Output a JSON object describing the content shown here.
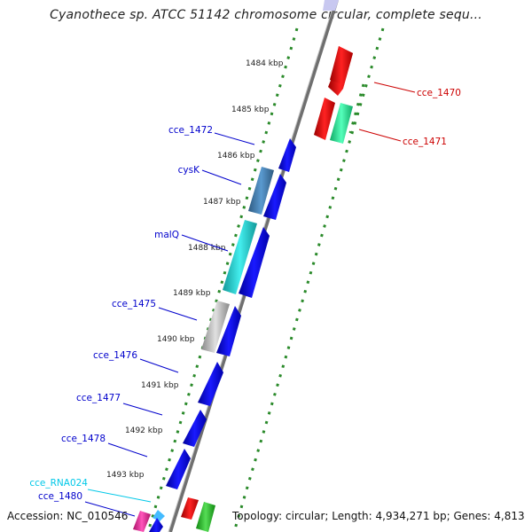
{
  "title": "Cyanothece sp. ATCC 51142 chromosome circular, complete sequ...",
  "footer": {
    "accession": "Accession: NC_010546",
    "summary": "Topology: circular; Length: 4,934,271 bp; Genes: 4,813"
  },
  "tick_labels": [
    "1484 kbp",
    "1485 kbp",
    "1486 kbp",
    "1487 kbp",
    "1488 kbp",
    "1489 kbp",
    "1490 kbp",
    "1491 kbp",
    "1492 kbp",
    "1493 kbp"
  ],
  "genes": [
    {
      "name": "cce_1470",
      "color": "#cc0000",
      "strand": "forward",
      "feature": "red-gene"
    },
    {
      "name": "cce_1471",
      "color": "#cc0000",
      "strand": "forward",
      "feature": "red-gene"
    },
    {
      "name": "cce_1472",
      "color": "#0000cc",
      "strand": "reverse",
      "feature": "blue-gene"
    },
    {
      "name": "cysK",
      "color": "#0000cc",
      "strand": "reverse",
      "feature": "steelblue-gene"
    },
    {
      "name": "malQ",
      "color": "#0000cc",
      "strand": "reverse",
      "feature": "cyan-gene"
    },
    {
      "name": "cce_1475",
      "color": "#0000cc",
      "strand": "reverse",
      "feature": "gray-gene"
    },
    {
      "name": "cce_1476",
      "color": "#0000cc",
      "strand": "reverse",
      "feature": "blue-gene"
    },
    {
      "name": "cce_1477",
      "color": "#0000cc",
      "strand": "reverse",
      "feature": "blue-gene"
    },
    {
      "name": "cce_1478",
      "color": "#0000cc",
      "strand": "reverse",
      "feature": "blue-gene"
    },
    {
      "name": "cce_RNA024",
      "color": "#00c8e8",
      "strand": "reverse",
      "feature": "rna-gene"
    },
    {
      "name": "cce_1480",
      "color": "#0000cc",
      "strand": "reverse",
      "feature": "blue-gene"
    }
  ],
  "colors": {
    "backbone": "#7a7a7a",
    "gc_dots": "#2a8a2a",
    "forward_gene": "#ee0000",
    "reverse_gene": "#0000ee",
    "steelblue_gene": "#4682b4",
    "cyan_gene": "#22c8c8",
    "gray_gene": "#b8b8b8",
    "teal_gene": "#22dd99",
    "pink_gene": "#ee3399",
    "green_gene": "#33bb33"
  }
}
